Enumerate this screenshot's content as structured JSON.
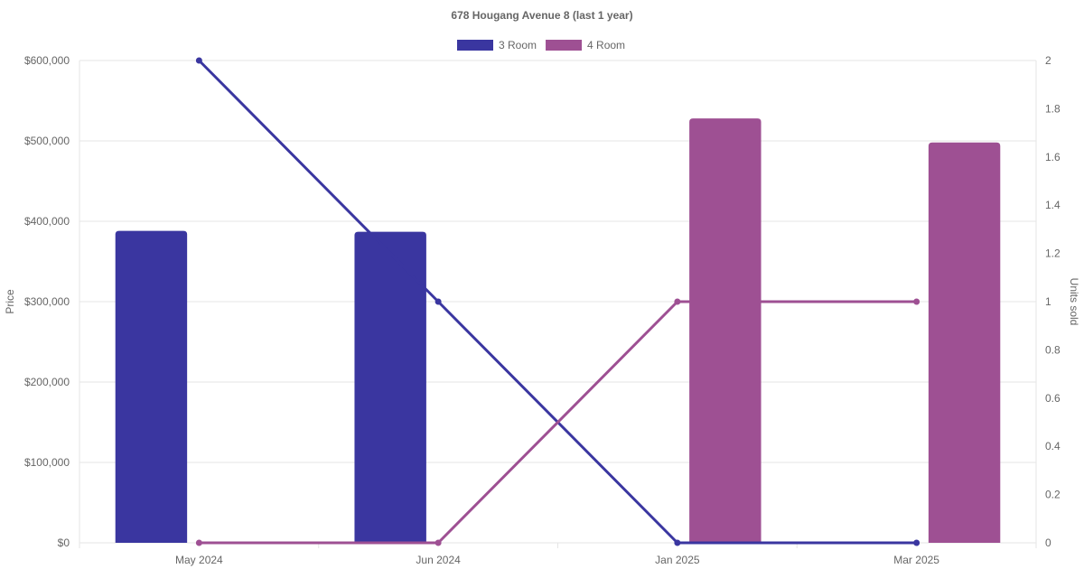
{
  "chart_data": {
    "type": "bar",
    "title": "678 Hougang Avenue 8 (last 1 year)",
    "categories": [
      "May 2024",
      "Jun 2024",
      "Jan 2025",
      "Mar 2025"
    ],
    "y_left": {
      "label": "Price",
      "min": 0,
      "max": 600000,
      "ticks": [
        0,
        100000,
        200000,
        300000,
        400000,
        500000,
        600000
      ],
      "tick_labels": [
        "$0",
        "$100,000",
        "$200,000",
        "$300,000",
        "$400,000",
        "$500,000",
        "$600,000"
      ]
    },
    "y_right": {
      "label": "Units sold",
      "min": 0,
      "max": 2,
      "ticks": [
        0,
        0.2,
        0.4,
        0.6,
        0.8,
        1,
        1.2,
        1.4,
        1.6,
        1.8,
        2
      ],
      "tick_labels": [
        "0",
        "0.2",
        "0.4",
        "0.6",
        "0.8",
        "1",
        "1.2",
        "1.4",
        "1.6",
        "1.8",
        "2"
      ]
    },
    "series": [
      {
        "name": "3 Room",
        "color": "#3a36a0",
        "price": [
          388000,
          387000,
          null,
          null
        ],
        "units_sold": [
          2,
          1,
          0,
          0
        ]
      },
      {
        "name": "4 Room",
        "color": "#9e5093",
        "price": [
          null,
          null,
          528000,
          498000
        ],
        "units_sold": [
          0,
          0,
          1,
          1
        ]
      }
    ],
    "legend_position": "top",
    "grid": true
  }
}
